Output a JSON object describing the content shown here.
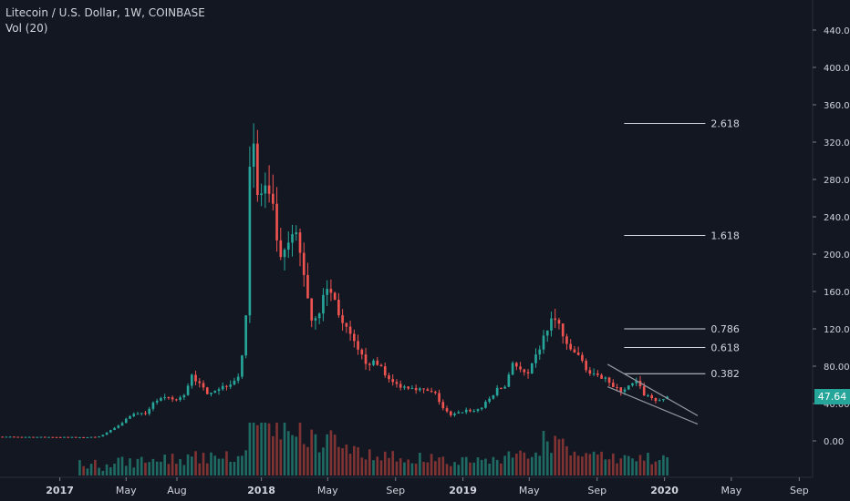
{
  "header": {
    "symbol_line": "Litecoin / U.S. Dollar, 1W, COINBASE",
    "indicator_line": "Vol (20)"
  },
  "colors": {
    "background": "#131722",
    "up": "#26a69a",
    "down": "#ef5350",
    "up_volume": "#1f6b63",
    "down_volume": "#7f3333",
    "fib_line": "#d1d4dc",
    "wedge": "#9598a1",
    "grid": "#1e222d",
    "axis_text": "#d1d4dc"
  },
  "last_price": "47.64",
  "chart_data": {
    "type": "candlestick",
    "title": "Litecoin / U.S. Dollar, 1W, COINBASE",
    "xlabel": "",
    "ylabel": "",
    "ylim": [
      -30,
      460
    ],
    "y_ticks": [
      "0.00",
      "40.00",
      "80.00",
      "120.00",
      "160.00",
      "200.00",
      "240.00",
      "280.00",
      "320.00",
      "360.00",
      "400.00",
      "440.00"
    ],
    "x_ticks": [
      "2017",
      "May",
      "Aug",
      "2018",
      "May",
      "Sep",
      "2019",
      "May",
      "Sep",
      "2020",
      "May",
      "Sep"
    ],
    "x_tick_dates": [
      "2017-01-01",
      "2017-05-01",
      "2017-08-01",
      "2018-01-01",
      "2018-05-01",
      "2018-09-01",
      "2019-01-01",
      "2019-05-01",
      "2019-09-01",
      "2020-01-01",
      "2020-05-01",
      "2020-09-01"
    ],
    "x_range": [
      "2016-08-01",
      "2020-10-15"
    ],
    "grid": false,
    "legend": "none",
    "closes": [
      {
        "date": "2016-08-01",
        "close": 4.5
      },
      {
        "date": "2017-02-15",
        "close": 4.0
      },
      {
        "date": "2017-03-13",
        "close": 4.5
      },
      {
        "date": "2017-03-27",
        "close": 9
      },
      {
        "date": "2017-04-10",
        "close": 14
      },
      {
        "date": "2017-04-24",
        "close": 20
      },
      {
        "date": "2017-05-08",
        "close": 27
      },
      {
        "date": "2017-05-22",
        "close": 30
      },
      {
        "date": "2017-06-05",
        "close": 28
      },
      {
        "date": "2017-06-19",
        "close": 42
      },
      {
        "date": "2017-07-03",
        "close": 45
      },
      {
        "date": "2017-07-17",
        "close": 45
      },
      {
        "date": "2017-07-31",
        "close": 44
      },
      {
        "date": "2017-08-14",
        "close": 48
      },
      {
        "date": "2017-08-28",
        "close": 72
      },
      {
        "date": "2017-09-11",
        "close": 60
      },
      {
        "date": "2017-09-25",
        "close": 52
      },
      {
        "date": "2017-10-09",
        "close": 55
      },
      {
        "date": "2017-10-23",
        "close": 58
      },
      {
        "date": "2017-11-06",
        "close": 62
      },
      {
        "date": "2017-11-20",
        "close": 70
      },
      {
        "date": "2017-11-27",
        "close": 88
      },
      {
        "date": "2017-12-04",
        "close": 140
      },
      {
        "date": "2017-12-11",
        "close": 300
      },
      {
        "date": "2017-12-18",
        "close": 320
      },
      {
        "date": "2017-12-25",
        "close": 260
      },
      {
        "date": "2018-01-08",
        "close": 270
      },
      {
        "date": "2018-01-22",
        "close": 245
      },
      {
        "date": "2018-02-05",
        "close": 190
      },
      {
        "date": "2018-02-19",
        "close": 210
      },
      {
        "date": "2018-03-05",
        "close": 220
      },
      {
        "date": "2018-03-19",
        "close": 180
      },
      {
        "date": "2018-04-02",
        "close": 130
      },
      {
        "date": "2018-04-16",
        "close": 140
      },
      {
        "date": "2018-04-30",
        "close": 165
      },
      {
        "date": "2018-05-14",
        "close": 150
      },
      {
        "date": "2018-05-28",
        "close": 125
      },
      {
        "date": "2018-06-11",
        "close": 112
      },
      {
        "date": "2018-06-25",
        "close": 95
      },
      {
        "date": "2018-07-09",
        "close": 85
      },
      {
        "date": "2018-07-23",
        "close": 83
      },
      {
        "date": "2018-08-06",
        "close": 80
      },
      {
        "date": "2018-08-20",
        "close": 65
      },
      {
        "date": "2018-09-03",
        "close": 60
      },
      {
        "date": "2018-09-17",
        "close": 58
      },
      {
        "date": "2018-10-01",
        "close": 58
      },
      {
        "date": "2018-10-15",
        "close": 55
      },
      {
        "date": "2018-10-29",
        "close": 53
      },
      {
        "date": "2018-11-12",
        "close": 50
      },
      {
        "date": "2018-11-26",
        "close": 35
      },
      {
        "date": "2018-12-10",
        "close": 27
      },
      {
        "date": "2018-12-24",
        "close": 30
      },
      {
        "date": "2019-01-07",
        "close": 33
      },
      {
        "date": "2019-01-21",
        "close": 32
      },
      {
        "date": "2019-02-04",
        "close": 36
      },
      {
        "date": "2019-02-18",
        "close": 45
      },
      {
        "date": "2019-03-04",
        "close": 55
      },
      {
        "date": "2019-03-18",
        "close": 58
      },
      {
        "date": "2019-04-01",
        "close": 85
      },
      {
        "date": "2019-04-15",
        "close": 75
      },
      {
        "date": "2019-04-29",
        "close": 70
      },
      {
        "date": "2019-05-13",
        "close": 90
      },
      {
        "date": "2019-05-27",
        "close": 110
      },
      {
        "date": "2019-06-10",
        "close": 130
      },
      {
        "date": "2019-06-24",
        "close": 125
      },
      {
        "date": "2019-07-08",
        "close": 100
      },
      {
        "date": "2019-07-22",
        "close": 95
      },
      {
        "date": "2019-08-05",
        "close": 85
      },
      {
        "date": "2019-08-19",
        "close": 72
      },
      {
        "date": "2019-09-02",
        "close": 68
      },
      {
        "date": "2019-09-16",
        "close": 70
      },
      {
        "date": "2019-09-30",
        "close": 57
      },
      {
        "date": "2019-10-14",
        "close": 54
      },
      {
        "date": "2019-10-28",
        "close": 58
      },
      {
        "date": "2019-11-11",
        "close": 63
      },
      {
        "date": "2019-11-25",
        "close": 50
      },
      {
        "date": "2019-12-09",
        "close": 46
      },
      {
        "date": "2019-12-23",
        "close": 42
      },
      {
        "date": "2020-01-06",
        "close": 47.64
      }
    ],
    "fib_levels": [
      {
        "label": "2.618",
        "value": 340
      },
      {
        "label": "1.618",
        "value": 220
      },
      {
        "label": "0.786",
        "value": 120
      },
      {
        "label": "0.618",
        "value": 100
      },
      {
        "label": "0.382",
        "value": 72
      }
    ],
    "fib_x_range": [
      "2019-10-20",
      "2020-03-15"
    ],
    "wedge": {
      "upper": [
        [
          "2019-09-20",
          82
        ],
        [
          "2020-03-01",
          27
        ]
      ],
      "lower": [
        [
          "2019-09-20",
          58
        ],
        [
          "2020-03-01",
          18
        ]
      ]
    }
  }
}
